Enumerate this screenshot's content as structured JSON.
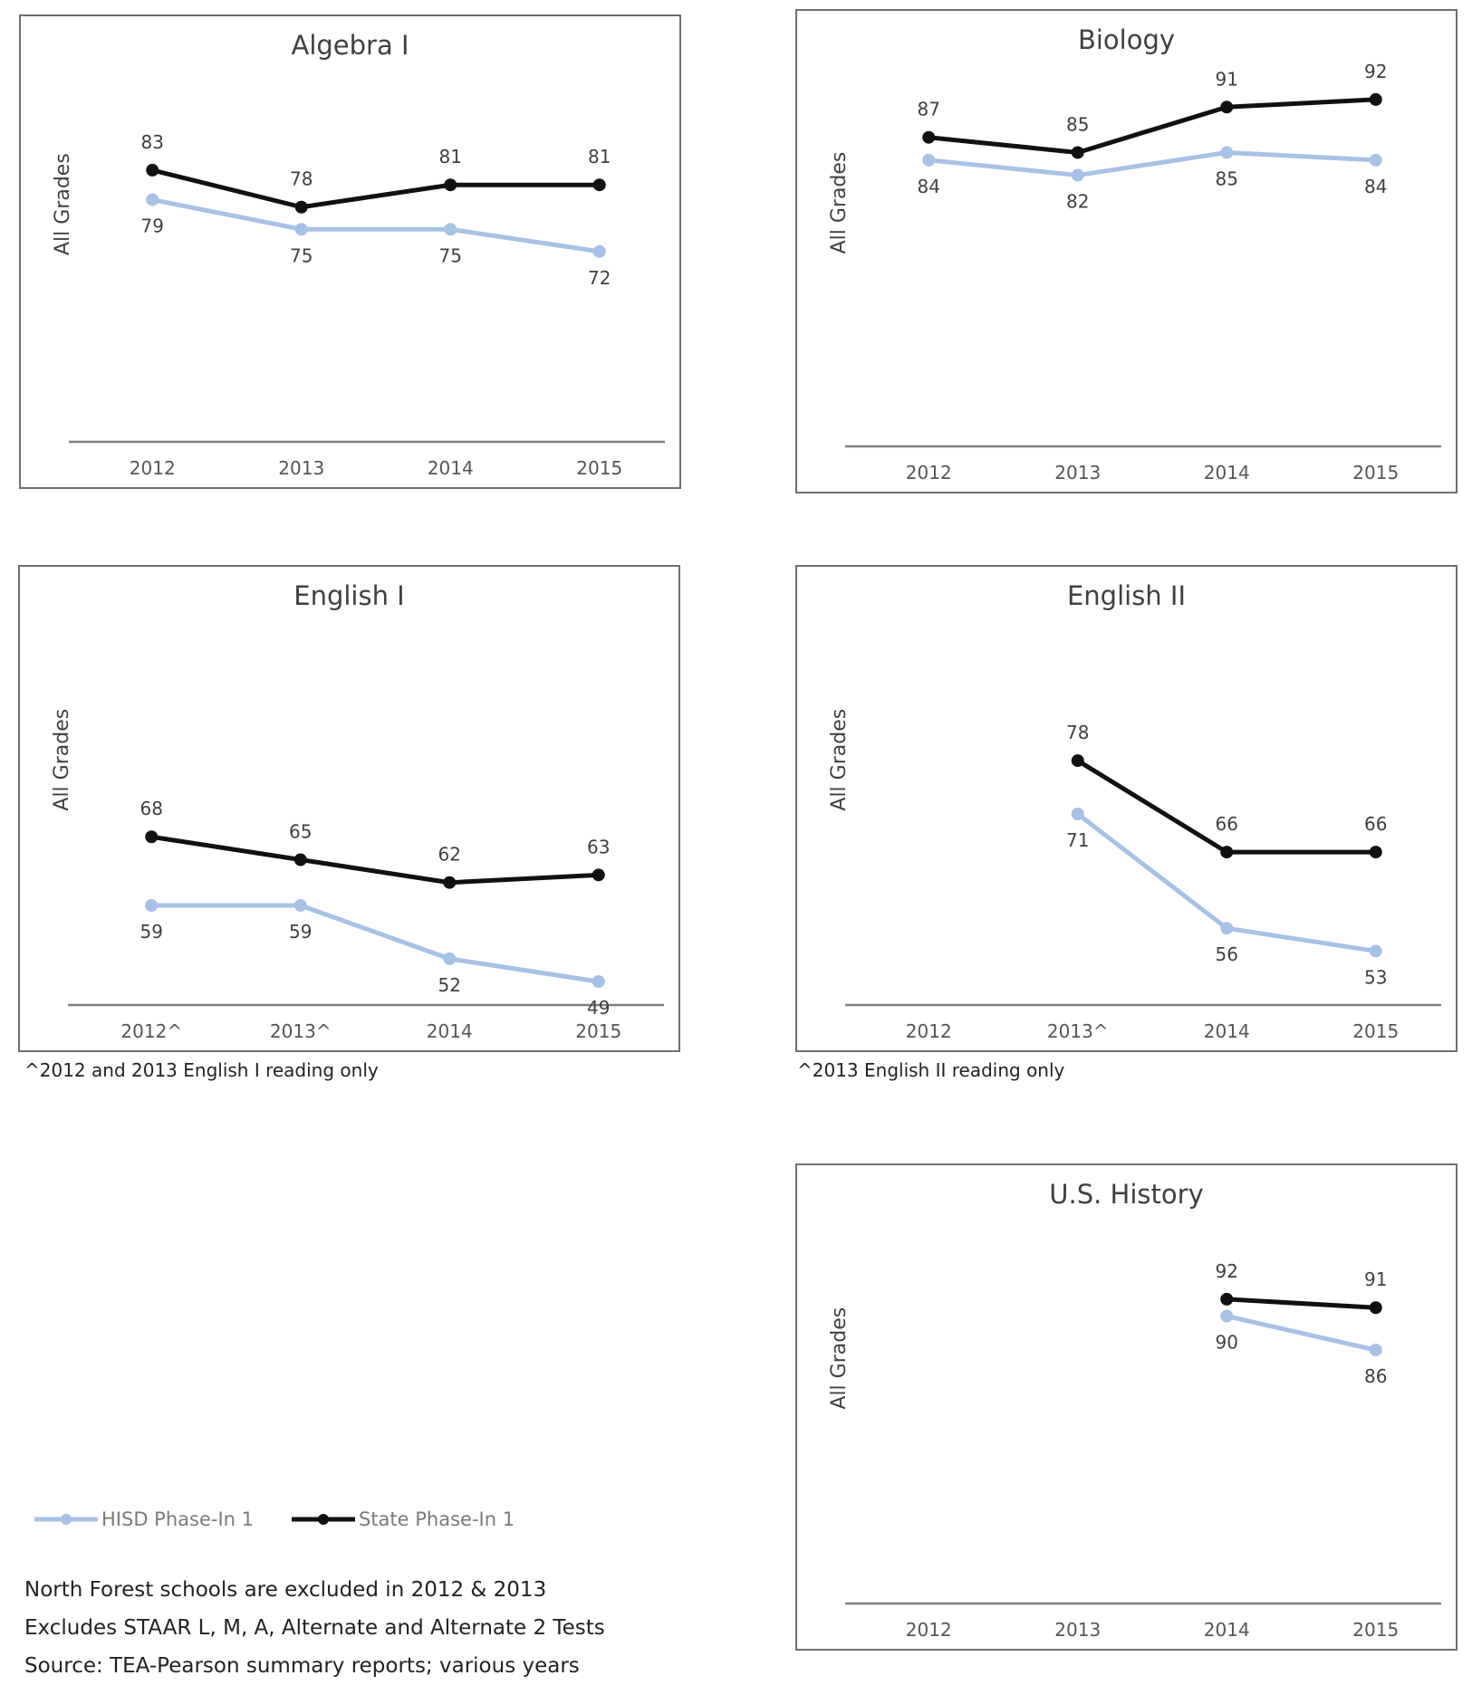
{
  "colors": {
    "hisd": "#a6c1e6",
    "state": "#111111",
    "axis": "#7f7f7f",
    "border": "#6f6f6f"
  },
  "legend": {
    "hisd": "HISD Phase-In 1",
    "state": "State Phase-In 1"
  },
  "notes": [
    "North Forest schools are excluded in 2012 & 2013",
    "Excludes STAAR L, M, A, Alternate and Alternate 2 Tests",
    "Source: TEA-Pearson summary reports; various years"
  ],
  "footnotes": {
    "english1": "^2012 and 2013 English I reading only",
    "english2": "^2013 English II reading only"
  },
  "chart_data": [
    {
      "id": "algebra1",
      "type": "line",
      "title": "Algebra I",
      "ylabel": "All Grades",
      "categories": [
        "2012",
        "2013",
        "2014",
        "2015"
      ],
      "ylim": [
        0,
        100
      ],
      "series": [
        {
          "name": "HISD Phase-In 1",
          "values": [
            79,
            75,
            75,
            72
          ]
        },
        {
          "name": "State Phase-In 1",
          "values": [
            83,
            78,
            81,
            81
          ]
        }
      ]
    },
    {
      "id": "biology",
      "type": "line",
      "title": "Biology",
      "ylabel": "All Grades",
      "categories": [
        "2012",
        "2013",
        "2014",
        "2015"
      ],
      "ylim": [
        0,
        100
      ],
      "series": [
        {
          "name": "HISD Phase-In 1",
          "values": [
            84,
            82,
            85,
            84
          ]
        },
        {
          "name": "State Phase-In 1",
          "values": [
            87,
            85,
            91,
            92
          ]
        }
      ]
    },
    {
      "id": "english1",
      "type": "line",
      "title": "English I",
      "ylabel": "All Grades",
      "categories": [
        "2012^",
        "2013^",
        "2014",
        "2015"
      ],
      "ylim": [
        0,
        100
      ],
      "series": [
        {
          "name": "HISD Phase-In 1",
          "values": [
            59,
            59,
            52,
            49
          ]
        },
        {
          "name": "State Phase-In 1",
          "values": [
            68,
            65,
            62,
            63
          ]
        }
      ]
    },
    {
      "id": "english2",
      "type": "line",
      "title": "English II",
      "ylabel": "All Grades",
      "categories": [
        "2012",
        "2013^",
        "2014",
        "2015"
      ],
      "ylim": [
        0,
        100
      ],
      "series": [
        {
          "name": "HISD Phase-In 1",
          "values": [
            null,
            71,
            56,
            53
          ]
        },
        {
          "name": "State Phase-In 1",
          "values": [
            null,
            78,
            66,
            66
          ]
        }
      ]
    },
    {
      "id": "ushistory",
      "type": "line",
      "title": "U.S. History",
      "ylabel": "All Grades",
      "categories": [
        "2012",
        "2013",
        "2014",
        "2015"
      ],
      "ylim": [
        0,
        100
      ],
      "series": [
        {
          "name": "HISD Phase-In 1",
          "values": [
            null,
            null,
            90,
            86
          ]
        },
        {
          "name": "State Phase-In 1",
          "values": [
            null,
            null,
            92,
            91
          ]
        }
      ]
    }
  ]
}
